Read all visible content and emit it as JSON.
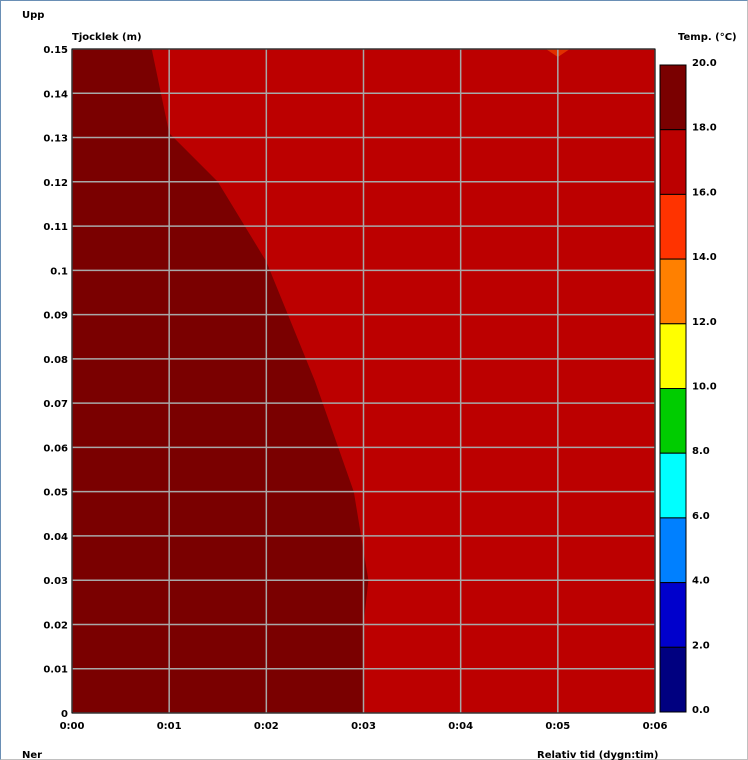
{
  "chart_data": {
    "type": "heatmap",
    "top_label": "Upp",
    "bottom_label": "Ner",
    "ylabel": "Tjocklek (m)",
    "xlabel": "Relativ tid (dygn:tim)",
    "colorbar_title": "Temp. (°C)",
    "y_ticks": [
      "0.15",
      "0.14",
      "0.13",
      "0.12",
      "0.11",
      "0.1",
      "0.09",
      "0.08",
      "0.07",
      "0.06",
      "0.05",
      "0.04",
      "0.03",
      "0.02",
      "0.01",
      "0"
    ],
    "x_ticks": [
      "0:00",
      "0:01",
      "0:02",
      "0:03",
      "0:04",
      "0:05",
      "0:06"
    ],
    "ylim": [
      0,
      0.15
    ],
    "xlim_hours": [
      0,
      6
    ],
    "grid": true,
    "colorbar": {
      "ticks": [
        "20.0",
        "18.0",
        "16.0",
        "14.0",
        "12.0",
        "10.0",
        "8.0",
        "6.0",
        "4.0",
        "2.0",
        "0.0"
      ],
      "bands": [
        {
          "from": 18,
          "to": 20,
          "color": "#7a0000"
        },
        {
          "from": 16,
          "to": 18,
          "color": "#bc0000"
        },
        {
          "from": 14,
          "to": 16,
          "color": "#ff3300"
        },
        {
          "from": 12,
          "to": 14,
          "color": "#ff8000"
        },
        {
          "from": 10,
          "to": 12,
          "color": "#ffff00"
        },
        {
          "from": 8,
          "to": 10,
          "color": "#00cc00"
        },
        {
          "from": 6,
          "to": 8,
          "color": "#00ffff"
        },
        {
          "from": 4,
          "to": 6,
          "color": "#0080ff"
        },
        {
          "from": 2,
          "to": 4,
          "color": "#0000cc"
        },
        {
          "from": 0,
          "to": 2,
          "color": "#000080"
        }
      ]
    },
    "regions": [
      {
        "name": "18–20 °C",
        "color": "#7a0000",
        "boundary": [
          {
            "hour": 0.82,
            "depth": 0.15
          },
          {
            "hour": 1.0,
            "depth": 0.131
          },
          {
            "hour": 1.5,
            "depth": 0.12
          },
          {
            "hour": 2.0,
            "depth": 0.102
          },
          {
            "hour": 2.5,
            "depth": 0.075
          },
          {
            "hour": 2.9,
            "depth": 0.05
          },
          {
            "hour": 3.05,
            "depth": 0.03
          },
          {
            "hour": 3.0,
            "depth": 0.02
          },
          {
            "hour": 3.0,
            "depth": 0.0
          }
        ]
      },
      {
        "name": "16–18 °C",
        "color": "#bc0000",
        "note_boundary": "remaining area"
      },
      {
        "name": "14–16 °C",
        "color": "#e03000",
        "spot": {
          "hour": 5.0,
          "depth": 0.15
        }
      }
    ]
  }
}
